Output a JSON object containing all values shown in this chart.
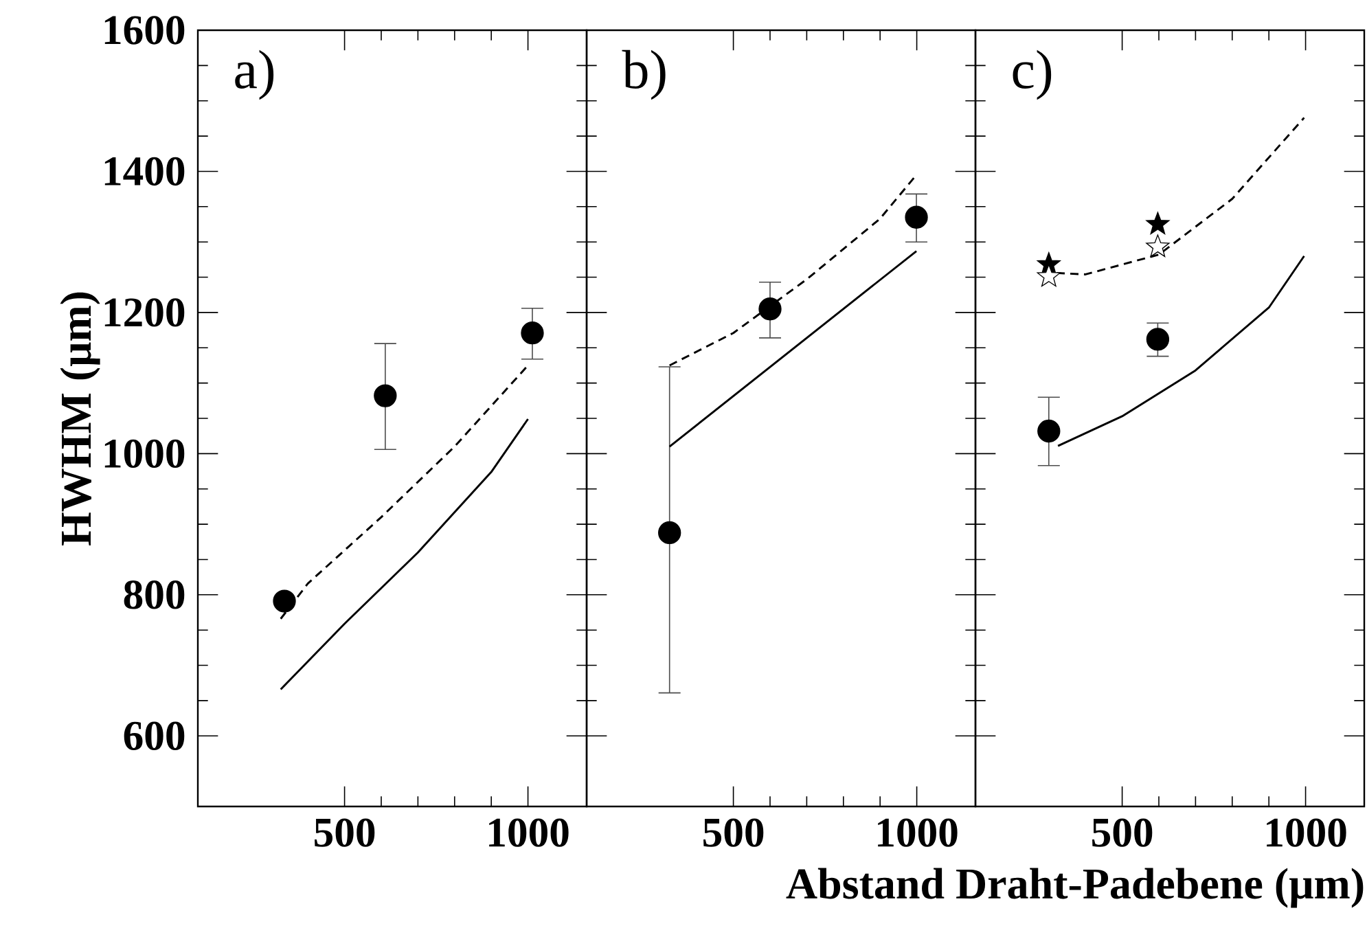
{
  "chart_data": [
    {
      "type": "scatter",
      "title": "a)",
      "ylabel": "HWHM (μm)",
      "xlim": [
        100,
        1160
      ],
      "ylim": [
        500,
        1600
      ],
      "xticks": [
        500,
        1000
      ],
      "yticks": [
        600,
        800,
        1000,
        1200,
        1400,
        1600
      ],
      "series": [
        {
          "marker": "circle",
          "color": "#000000",
          "x": [
            336,
            611,
            1012
          ],
          "values": [
            791,
            1082,
            1171
          ],
          "errors": [
            null,
            [
              1006,
              1156
            ],
            [
              1134,
              1206
            ]
          ]
        },
        {
          "type": "line",
          "line_style": "dashed",
          "color": "#000000",
          "x": [
            326,
            400,
            600,
            800,
            1000
          ],
          "values": [
            766,
            816,
            910,
            1010,
            1125
          ]
        },
        {
          "type": "line",
          "line_style": "solid",
          "color": "#000000",
          "x": [
            326,
            500,
            700,
            900,
            1000
          ],
          "values": [
            666,
            759,
            860,
            974,
            1049
          ]
        }
      ]
    },
    {
      "type": "scatter",
      "title": "b)",
      "xlim": [
        100,
        1160
      ],
      "ylim": [
        500,
        1600
      ],
      "xticks": [
        500,
        1000
      ],
      "yticks": [
        600,
        800,
        1000,
        1200,
        1400,
        1600
      ],
      "tick_labels": "x",
      "series": [
        {
          "marker": "circle",
          "color": "#000000",
          "x": [
            326,
            600,
            999
          ],
          "values": [
            888,
            1205,
            1335
          ],
          "errors": [
            [
              661,
              1123
            ],
            [
              1164,
              1243
            ],
            [
              1300,
              1368
            ]
          ]
        },
        {
          "type": "line",
          "line_style": "dashed",
          "color": "#000000",
          "x": [
            326,
            500,
            700,
            900,
            999
          ],
          "values": [
            1125,
            1171,
            1247,
            1333,
            1395
          ]
        },
        {
          "type": "line",
          "line_style": "solid",
          "color": "#000000",
          "x": [
            326,
            999
          ],
          "values": [
            1010,
            1287
          ]
        }
      ]
    },
    {
      "type": "scatter",
      "title": "c)",
      "xlabel": "Abstand Draht-Padebene (μm)",
      "xlim": [
        100,
        1160
      ],
      "ylim": [
        500,
        1600
      ],
      "xticks": [
        500,
        1000
      ],
      "yticks": [
        600,
        800,
        1000,
        1200,
        1400,
        1600
      ],
      "tick_labels": "x",
      "series": [
        {
          "marker": "circle",
          "color": "#000000",
          "x": [
            300,
            597
          ],
          "values": [
            1032,
            1162
          ],
          "errors": [
            [
              983,
              1080
            ],
            [
              1138,
              1185
            ]
          ]
        },
        {
          "marker": "star",
          "color": "#000000",
          "x": [
            300,
            597
          ],
          "values": [
            1268,
            1325
          ]
        },
        {
          "marker": "star",
          "color": "#ffffff",
          "x": [
            300,
            597
          ],
          "values": [
            1251,
            1293
          ]
        },
        {
          "type": "line",
          "line_style": "dashed",
          "color": "#000000",
          "x": [
            321,
            400,
            600,
            800,
            996
          ],
          "values": [
            1256,
            1254,
            1282,
            1361,
            1476
          ]
        },
        {
          "type": "line",
          "line_style": "solid",
          "color": "#000000",
          "x": [
            325,
            500,
            700,
            900,
            996
          ],
          "values": [
            1011,
            1053,
            1118,
            1207,
            1280
          ]
        }
      ]
    }
  ]
}
